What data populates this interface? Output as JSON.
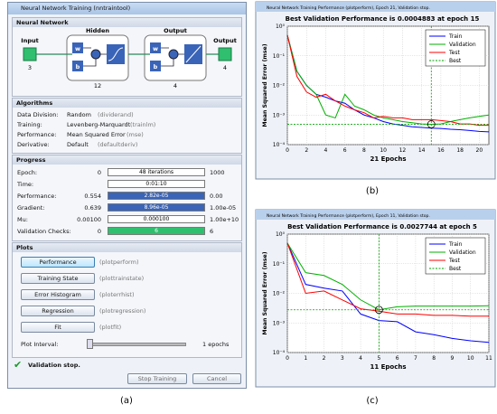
{
  "window": {
    "title": "Neural Network Training (nntraintool)",
    "network": {
      "heading": "Neural Network",
      "input": "Input",
      "input_size": "3",
      "hidden": "Hidden",
      "hidden_size": "12",
      "output": "Output",
      "output_size": "4",
      "output_label": "Output",
      "output_label_size": "4",
      "w": "w",
      "b": "b"
    },
    "algorithms": {
      "heading": "Algorithms",
      "rows": [
        [
          "Data Division:",
          "Random",
          "(dividerand)"
        ],
        [
          "Training:",
          "Levenberg-Marquardt",
          "(trainlm)"
        ],
        [
          "Performance:",
          "Mean Squared Error",
          "(mse)"
        ],
        [
          "Derivative:",
          "Default",
          "(defaultderiv)"
        ]
      ]
    },
    "progress": {
      "heading": "Progress",
      "rows": [
        {
          "label": "Epoch:",
          "start": "0",
          "bar": "48 iterations",
          "end": "1000",
          "fill": null
        },
        {
          "label": "Time:",
          "start": "",
          "bar": "0:01:10",
          "end": "",
          "fill": null
        },
        {
          "label": "Performance:",
          "start": "0.554",
          "bar": "2.82e-05",
          "end": "0.00",
          "fill": "#3a64b8"
        },
        {
          "label": "Gradient:",
          "start": "0.639",
          "bar": "8.96e-05",
          "end": "1.00e-05",
          "fill": "#3a64b8"
        },
        {
          "label": "Mu:",
          "start": "0.00100",
          "bar": "0.000100",
          "end": "1.00e+10",
          "fill": null
        },
        {
          "label": "Validation Checks:",
          "start": "0",
          "bar": "6",
          "end": "6",
          "fill": "#2fbf6f"
        }
      ]
    },
    "plots": {
      "heading": "Plots",
      "buttons": [
        [
          "Performance",
          "(plotperform)"
        ],
        [
          "Training State",
          "(plottrainstate)"
        ],
        [
          "Error Histogram",
          "(ploterrhist)"
        ],
        [
          "Regression",
          "(plotregression)"
        ],
        [
          "Fit",
          "(plotfit)"
        ]
      ],
      "interval_label": "Plot Interval:",
      "interval": "1 epochs"
    },
    "status": "Validation stop.",
    "stop": "Stop Training",
    "cancel": "Cancel"
  },
  "captions": [
    "(a)",
    "(b)",
    "(c)"
  ],
  "chart_data": [
    {
      "type": "line",
      "window_title": "Neural Network Training Performance (plotperform), Epoch 21, Validation stop.",
      "title": "Best Validation Performance is 0.0004883 at epoch 15",
      "xlabel": "21 Epochs",
      "ylabel": "Mean Squared Error  (mse)",
      "x": [
        0,
        1,
        2,
        3,
        4,
        5,
        6,
        7,
        8,
        9,
        10,
        11,
        12,
        13,
        14,
        15,
        16,
        17,
        18,
        19,
        20,
        21
      ],
      "series": [
        {
          "name": "Train",
          "color": "#0000ff",
          "values": [
            0.5,
            0.03,
            0.01,
            0.005,
            0.004,
            0.003,
            0.0025,
            0.0015,
            0.001,
            0.0008,
            0.0006,
            0.0005,
            0.00045,
            0.0004,
            0.00038,
            0.00036,
            0.00035,
            0.00033,
            0.00032,
            0.0003,
            0.00028,
            0.00027
          ]
        },
        {
          "name": "Validation",
          "color": "#00b000",
          "values": [
            0.5,
            0.03,
            0.01,
            0.005,
            0.001,
            0.0008,
            0.005,
            0.002,
            0.0015,
            0.001,
            0.0008,
            0.0007,
            0.0006,
            0.00055,
            0.0005,
            0.0004883,
            0.0005,
            0.0006,
            0.0007,
            0.0008,
            0.0009,
            0.001
          ]
        },
        {
          "name": "Test",
          "color": "#ff0000",
          "values": [
            0.5,
            0.02,
            0.006,
            0.004,
            0.005,
            0.003,
            0.002,
            0.0015,
            0.0012,
            0.0008,
            0.0009,
            0.0008,
            0.0008,
            0.0007,
            0.0007,
            0.0007,
            0.00065,
            0.0006,
            0.0005,
            0.0005,
            0.00045,
            0.00045
          ]
        }
      ],
      "best": {
        "name": "Best",
        "color": "#00a000",
        "x": 15,
        "y": 0.0004883
      },
      "xlim": [
        0,
        21
      ],
      "xticks": [
        0,
        2,
        4,
        6,
        8,
        10,
        12,
        14,
        16,
        18,
        20
      ],
      "ylim": [
        0.0001,
        1
      ],
      "log": true,
      "grid": true,
      "legend": "upper right",
      "yticks": [
        {
          "value": 0.0001,
          "label": "10⁻⁴"
        },
        {
          "value": 0.001,
          "label": "10⁻³"
        },
        {
          "value": 0.01,
          "label": "10⁻²"
        },
        {
          "value": 0.1,
          "label": "10⁻¹"
        },
        {
          "value": 1,
          "label": "10⁰"
        }
      ]
    },
    {
      "type": "line",
      "window_title": "Neural Network Training Performance (plotperform), Epoch 11, Validation stop.",
      "title": "Best Validation Performance is 0.0027744 at epoch 5",
      "xlabel": "11 Epochs",
      "ylabel": "Mean Squared Error  (mse)",
      "x": [
        0,
        1,
        2,
        3,
        4,
        5,
        6,
        7,
        8,
        9,
        10,
        11
      ],
      "series": [
        {
          "name": "Train",
          "color": "#0000ff",
          "values": [
            0.5,
            0.02,
            0.015,
            0.012,
            0.002,
            0.0012,
            0.0011,
            0.0005,
            0.0004,
            0.0003,
            0.00025,
            0.00022
          ]
        },
        {
          "name": "Validation",
          "color": "#00b000",
          "values": [
            0.5,
            0.05,
            0.04,
            0.02,
            0.006,
            0.0027744,
            0.0035,
            0.0037,
            0.0037,
            0.0037,
            0.0037,
            0.0038
          ]
        },
        {
          "name": "Test",
          "color": "#ff0000",
          "values": [
            0.5,
            0.01,
            0.012,
            0.006,
            0.003,
            0.0025,
            0.002,
            0.002,
            0.0018,
            0.0018,
            0.0017,
            0.0017
          ]
        }
      ],
      "best": {
        "name": "Best",
        "color": "#00a000",
        "x": 5,
        "y": 0.0027744
      },
      "xlim": [
        0,
        11
      ],
      "xticks": [
        0,
        1,
        2,
        3,
        4,
        5,
        6,
        7,
        8,
        9,
        10,
        11
      ],
      "ylim": [
        0.0001,
        1
      ],
      "log": true,
      "grid": true,
      "legend": "upper right",
      "yticks": [
        {
          "value": 0.0001,
          "label": "10⁻⁴"
        },
        {
          "value": 0.001,
          "label": "10⁻³"
        },
        {
          "value": 0.01,
          "label": "10⁻²"
        },
        {
          "value": 0.1,
          "label": "10⁻¹"
        },
        {
          "value": 1,
          "label": "10⁰"
        }
      ]
    }
  ]
}
